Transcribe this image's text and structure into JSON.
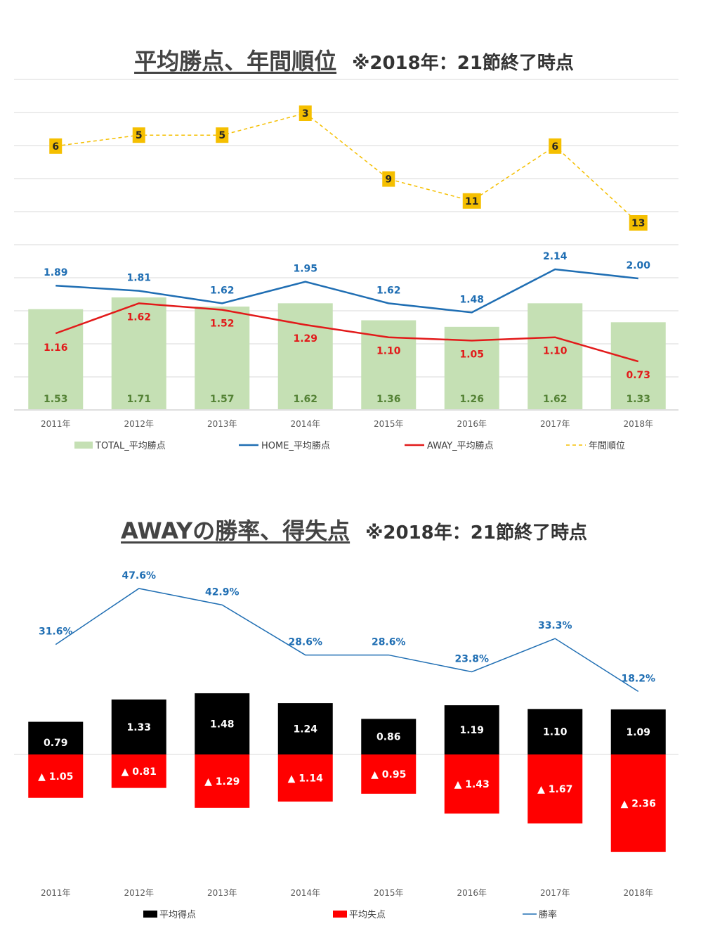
{
  "chart1": {
    "title": "平均勝点、年間順位",
    "subtitle": "※2018年：21節終了時点",
    "chart_data": {
      "type": "bar",
      "categories": [
        "2011年",
        "2012年",
        "2013年",
        "2014年",
        "2015年",
        "2016年",
        "2017年",
        "2018年"
      ],
      "series": [
        {
          "name": "TOTAL_平均勝点",
          "type": "bar",
          "color": "#c5e0b4",
          "label_color": "#548235",
          "values": [
            1.53,
            1.71,
            1.57,
            1.62,
            1.36,
            1.26,
            1.62,
            1.33
          ]
        },
        {
          "name": "HOME_平均勝点",
          "type": "line",
          "color": "#1f6eb3",
          "values": [
            1.89,
            1.81,
            1.62,
            1.95,
            1.62,
            1.48,
            2.14,
            2.0
          ]
        },
        {
          "name": "AWAY_平均勝点",
          "type": "line",
          "color": "#e21a1a",
          "values": [
            1.16,
            1.62,
            1.52,
            1.29,
            1.1,
            1.05,
            1.1,
            0.73
          ]
        },
        {
          "name": "年間順位",
          "type": "dashed-line",
          "color": "#f5bf00",
          "values": [
            6,
            5,
            5,
            3,
            9,
            11,
            6,
            13
          ]
        }
      ],
      "labels": {
        "home": [
          "1.89",
          "1.81",
          "1.62",
          "1.95",
          "1.62",
          "1.48",
          "2.14",
          "2.00"
        ],
        "away": [
          "1.16",
          "1.62",
          "1.52",
          "1.29",
          "1.10",
          "1.05",
          "1.10",
          "0.73"
        ],
        "total": [
          "1.53",
          "1.71",
          "1.57",
          "1.62",
          "1.36",
          "1.26",
          "1.62",
          "1.33"
        ]
      },
      "ylim_points": [
        0,
        2.5
      ],
      "rank_axis_reversed": true,
      "grid": true,
      "legend_position": "bottom"
    }
  },
  "chart2": {
    "title": "AWAYの勝率、得失点",
    "subtitle": "※2018年：21節終了時点",
    "chart_data": {
      "type": "bar",
      "categories": [
        "2011年",
        "2012年",
        "2013年",
        "2014年",
        "2015年",
        "2016年",
        "2017年",
        "2018年"
      ],
      "series": [
        {
          "name": "平均得点",
          "type": "bar",
          "color": "#000000",
          "values": [
            0.79,
            1.33,
            1.48,
            1.24,
            0.86,
            1.19,
            1.1,
            1.09
          ]
        },
        {
          "name": "平均失点",
          "type": "bar-negative",
          "color": "#ff0000",
          "values": [
            1.05,
            0.81,
            1.29,
            1.14,
            0.95,
            1.43,
            1.67,
            2.36
          ]
        },
        {
          "name": "勝率",
          "type": "line",
          "color": "#1f6eb3",
          "values": [
            31.6,
            47.6,
            42.9,
            28.6,
            28.6,
            23.8,
            33.3,
            18.2
          ]
        }
      ],
      "labels": {
        "scored": [
          "0.79",
          "1.33",
          "1.48",
          "1.24",
          "0.86",
          "1.19",
          "1.10",
          "1.09"
        ],
        "conceded": [
          "▲ 1.05",
          "▲ 0.81",
          "▲ 1.29",
          "▲ 1.14",
          "▲ 0.95",
          "▲ 1.43",
          "▲ 1.67",
          "▲ 2.36"
        ],
        "winrate": [
          "31.6%",
          "47.6%",
          "42.9%",
          "28.6%",
          "28.6%",
          "23.8%",
          "33.3%",
          "18.2%"
        ]
      },
      "grid": false,
      "legend_position": "bottom"
    }
  }
}
